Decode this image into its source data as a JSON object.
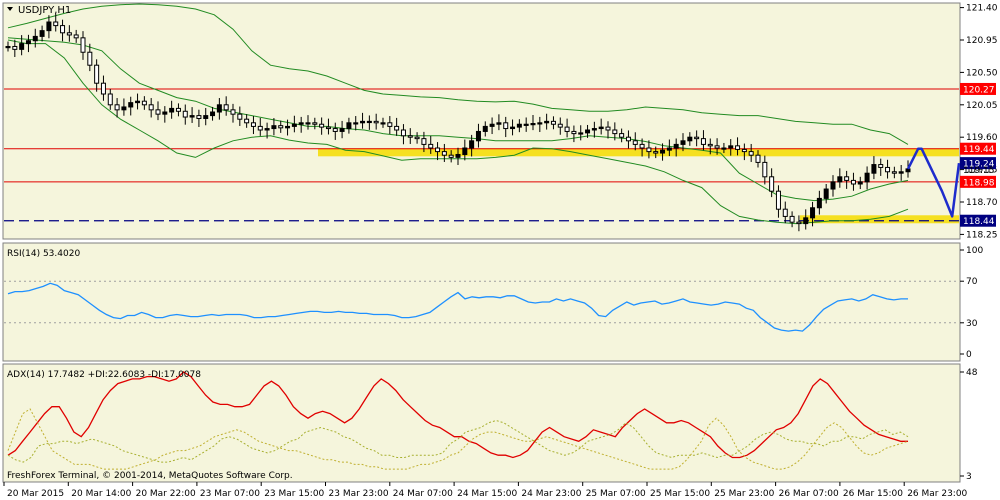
{
  "title": "USDJPY,H1",
  "copyright": "FreshForex Terminal, © 2001-2014, MetaQuotes Software Corp.",
  "colors": {
    "background": "#f5f5dc",
    "frame": "#808080",
    "candle": "#000000",
    "bollinger": "#228b22",
    "resistance": "#e00000",
    "support_dashed": "#000080",
    "highlight_band": "#f5dc00",
    "forecast": "#1e2ccc",
    "rsi": "#1e90ff",
    "adx": "#e00000",
    "plus_di": "#a8b030",
    "minus_di": "#c0b030",
    "label_red_bg": "#ff0000",
    "label_navy_bg": "#000080",
    "label_text": "#ffffff"
  },
  "chart_data": [
    {
      "panel": "price",
      "type": "candlestick",
      "symbol": "USDJPY",
      "timeframe": "H1",
      "ylim": [
        118.2,
        121.45
      ],
      "y_ticks": [
        "121.40",
        "120.95",
        "120.50",
        "120.05",
        "119.60",
        "119.15",
        "118.70",
        "118.25"
      ],
      "x_ticks": [
        "20 Mar 2015",
        "20 Mar 14:00",
        "20 Mar 22:00",
        "23 Mar 07:00",
        "23 Mar 15:00",
        "23 Mar 23:00",
        "24 Mar 07:00",
        "24 Mar 15:00",
        "24 Mar 23:00",
        "25 Mar 07:00",
        "25 Mar 15:00",
        "25 Mar 23:00",
        "26 Mar 07:00",
        "26 Mar 15:00",
        "26 Mar 23:00"
      ],
      "close": [
        120.86,
        120.82,
        120.9,
        120.94,
        121.0,
        121.08,
        121.2,
        121.15,
        121.05,
        121.02,
        120.98,
        120.78,
        120.6,
        120.35,
        120.2,
        120.05,
        119.98,
        120.02,
        120.08,
        120.1,
        120.05,
        119.98,
        119.92,
        119.95,
        120.0,
        119.96,
        119.88,
        119.9,
        119.86,
        119.9,
        119.95,
        120.05,
        119.98,
        119.92,
        119.85,
        119.8,
        119.75,
        119.7,
        119.72,
        119.76,
        119.73,
        119.75,
        119.78,
        119.8,
        119.8,
        119.78,
        119.74,
        119.72,
        119.68,
        119.72,
        119.8,
        119.8,
        119.82,
        119.82,
        119.8,
        119.8,
        119.75,
        119.7,
        119.62,
        119.6,
        119.58,
        119.5,
        119.45,
        119.4,
        119.35,
        119.32,
        119.36,
        119.45,
        119.55,
        119.68,
        119.75,
        119.78,
        119.8,
        119.72,
        119.74,
        119.78,
        119.78,
        119.79,
        119.8,
        119.82,
        119.78,
        119.74,
        119.68,
        119.65,
        119.66,
        119.7,
        119.72,
        119.74,
        119.7,
        119.65,
        119.6,
        119.55,
        119.5,
        119.45,
        119.4,
        119.38,
        119.42,
        119.45,
        119.5,
        119.55,
        119.6,
        119.58,
        119.5,
        119.48,
        119.45,
        119.45,
        119.48,
        119.43,
        119.4,
        119.35,
        119.25,
        119.05,
        118.85,
        118.6,
        118.5,
        118.42,
        118.4,
        118.48,
        118.62,
        118.75,
        118.88,
        118.98,
        119.05,
        119.0,
        118.95,
        118.98,
        119.1,
        119.22,
        119.18,
        119.12,
        119.1,
        119.12,
        119.16
      ],
      "levels": [
        120.27,
        119.44,
        118.98,
        118.44
      ],
      "level_labels": [
        "120.27",
        "119.44",
        "118.98",
        "118.44"
      ],
      "current_price_label": "119.24",
      "current_price_label_partial": "119.15",
      "bands": [
        {
          "name": "resistance-zone",
          "from_x": "23 Mar 15:00",
          "price": 119.39
        },
        {
          "name": "support-zone",
          "from_x": "26 Mar 07:00",
          "price": 118.46
        }
      ],
      "bollinger": {
        "upper": [
          121.12,
          121.18,
          121.25,
          121.32,
          121.38,
          121.42,
          121.44,
          121.45,
          121.44,
          121.42,
          121.38,
          121.3,
          121.1,
          120.8,
          120.6,
          120.55,
          120.52,
          120.45,
          120.35,
          120.25,
          120.2,
          120.18,
          120.16,
          120.15,
          120.12,
          120.1,
          120.09,
          120.1,
          120.06,
          120.0,
          119.98,
          119.96,
          119.96,
          119.98,
          120.02,
          120.0,
          119.98,
          119.94,
          119.92,
          119.9,
          119.9,
          119.86,
          119.82,
          119.8,
          119.78,
          119.78,
          119.7,
          119.65,
          119.5
        ],
        "middle": [
          120.98,
          120.96,
          120.94,
          120.92,
          120.88,
          120.8,
          120.55,
          120.35,
          120.25,
          120.15,
          120.1,
          120.0,
          119.95,
          119.9,
          119.85,
          119.8,
          119.75,
          119.75,
          119.72,
          119.7,
          119.65,
          119.62,
          119.62,
          119.62,
          119.6,
          119.58,
          119.55,
          119.55,
          119.55,
          119.55,
          119.58,
          119.62,
          119.6,
          119.58,
          119.54,
          119.48,
          119.45,
          119.42,
          119.38,
          119.1,
          118.95,
          118.8,
          118.75,
          118.72,
          118.74,
          118.78,
          118.88,
          118.95,
          119.0
        ],
        "lower": [
          120.95,
          120.9,
          120.9,
          120.7,
          120.35,
          120.05,
          119.85,
          119.7,
          119.55,
          119.38,
          119.32,
          119.45,
          119.55,
          119.6,
          119.62,
          119.56,
          119.52,
          119.5,
          119.42,
          119.4,
          119.34,
          119.28,
          119.3,
          119.3,
          119.3,
          119.3,
          119.32,
          119.35,
          119.45,
          119.44,
          119.4,
          119.35,
          119.3,
          119.25,
          119.2,
          119.12,
          119.0,
          118.9,
          118.65,
          118.5,
          118.45,
          118.42,
          118.4,
          118.42,
          118.44,
          118.44,
          118.46,
          118.5,
          118.6
        ]
      },
      "forecast": [
        [
          119.16,
          0
        ],
        [
          119.44,
          6
        ],
        [
          119.44,
          8
        ],
        [
          118.85,
          20
        ],
        [
          118.5,
          26
        ],
        [
          119.24,
          30
        ]
      ]
    },
    {
      "panel": "rsi",
      "type": "line",
      "label": "RSI(14) 53.4020",
      "ylim": [
        0,
        100
      ],
      "y_ticks": [
        "100",
        "70",
        "30",
        "0"
      ],
      "levels": [
        70,
        30
      ],
      "values": [
        58,
        60,
        60,
        61,
        63,
        65,
        68,
        66,
        61,
        59,
        57,
        52,
        47,
        42,
        38,
        35,
        34,
        37,
        37,
        40,
        38,
        35,
        35,
        37,
        38,
        37,
        36,
        36,
        37,
        38,
        37,
        38,
        38,
        38,
        37,
        35,
        35,
        36,
        36,
        37,
        38,
        39,
        40,
        41,
        41,
        40,
        40,
        41,
        40,
        40,
        39,
        39,
        38,
        38,
        38,
        37,
        35,
        35,
        36,
        38,
        40,
        45,
        50,
        55,
        59,
        53,
        55,
        54,
        55,
        55,
        54,
        56,
        56,
        53,
        50,
        49,
        50,
        50,
        53,
        51,
        53,
        51,
        49,
        44,
        37,
        36,
        42,
        46,
        50,
        47,
        49,
        50,
        51,
        48,
        49,
        51,
        53,
        50,
        49,
        48,
        47,
        48,
        50,
        49,
        48,
        44,
        42,
        35,
        30,
        25,
        23,
        22,
        23,
        22,
        28,
        36,
        43,
        47,
        51,
        52,
        53,
        51,
        53,
        57,
        55,
        53,
        52,
        53,
        53
      ],
      "x_start": 0
    },
    {
      "panel": "adx",
      "type": "line",
      "label": "ADX(14) 17.7482 +DI:22.6083 -DI:17.0078",
      "y_ticks": [
        "48",
        "3"
      ],
      "ylim": [
        3,
        48
      ],
      "series": [
        {
          "name": "ADX(14)",
          "values": [
            12,
            14,
            18,
            22,
            26,
            30,
            33,
            33,
            28,
            22,
            20,
            24,
            30,
            36,
            40,
            43,
            44,
            45,
            45,
            46,
            46,
            45,
            44,
            45,
            48,
            46,
            42,
            38,
            35,
            34,
            34,
            33,
            33,
            34,
            38,
            42,
            44,
            42,
            38,
            33,
            30,
            28,
            30,
            31,
            30,
            28,
            26,
            28,
            32,
            37,
            42,
            45,
            43,
            40,
            36,
            33,
            30,
            27,
            25,
            24,
            22,
            20,
            20,
            18,
            17,
            15,
            13,
            12,
            12,
            11,
            12,
            14,
            18,
            22,
            24,
            22,
            20,
            19,
            18,
            20,
            23,
            22,
            21,
            20,
            24,
            27,
            30,
            32,
            30,
            28,
            26,
            26,
            27,
            26,
            24,
            22,
            20,
            16,
            13,
            11,
            11,
            12,
            14,
            17,
            20,
            23,
            24,
            26,
            30,
            36,
            42,
            45,
            43,
            39,
            35,
            31,
            28,
            25,
            23,
            21,
            20,
            19,
            18,
            18
          ]
        },
        {
          "name": "+DI",
          "values": [
            12,
            10,
            9,
            11,
            16,
            17,
            17,
            18,
            18,
            17,
            18,
            19,
            18,
            17,
            16,
            14,
            13,
            12,
            11,
            10,
            9,
            9,
            10,
            11,
            10,
            12,
            14,
            16,
            19,
            20,
            19,
            17,
            15,
            14,
            13,
            14,
            16,
            18,
            19,
            22,
            23,
            24,
            23,
            22,
            20,
            19,
            17,
            15,
            14,
            12,
            12,
            11,
            11,
            12,
            12,
            12,
            12,
            13,
            17,
            19,
            22,
            23,
            24,
            26,
            27,
            26,
            24,
            22,
            20,
            18,
            16,
            14,
            13,
            12,
            13,
            15,
            18,
            19,
            20,
            21,
            23,
            26,
            24,
            20,
            16,
            13,
            12,
            11,
            12,
            12,
            12,
            13,
            12,
            11,
            12,
            12,
            14,
            16,
            19,
            21,
            22,
            21,
            19,
            18,
            18,
            17,
            17,
            16,
            18,
            18,
            20,
            20,
            19,
            21,
            22,
            23,
            21,
            22,
            20
          ]
        },
        {
          "name": "-DI",
          "values": [
            14,
            22,
            30,
            32,
            26,
            20,
            14,
            12,
            10,
            8,
            8,
            8,
            7,
            6,
            6,
            6,
            6,
            7,
            8,
            9,
            10,
            12,
            13,
            14,
            14,
            15,
            16,
            18,
            20,
            21,
            22,
            23,
            22,
            20,
            18,
            17,
            16,
            15,
            14,
            14,
            13,
            12,
            11,
            10,
            10,
            9,
            9,
            8,
            8,
            7,
            7,
            6,
            6,
            6,
            6,
            7,
            8,
            8,
            9,
            10,
            12,
            13,
            16,
            19,
            21,
            22,
            22,
            21,
            20,
            19,
            18,
            18,
            19,
            20,
            19,
            18,
            17,
            16,
            15,
            14,
            13,
            12,
            11,
            10,
            9,
            8,
            7,
            6,
            6,
            6,
            6,
            7,
            10,
            14,
            18,
            25,
            28,
            25,
            20,
            14,
            11,
            9,
            8,
            7,
            6,
            6,
            7,
            9,
            12,
            16,
            20,
            24,
            26,
            24,
            20,
            16,
            13,
            12,
            13,
            15,
            16,
            17,
            18
          ]
        }
      ]
    }
  ]
}
